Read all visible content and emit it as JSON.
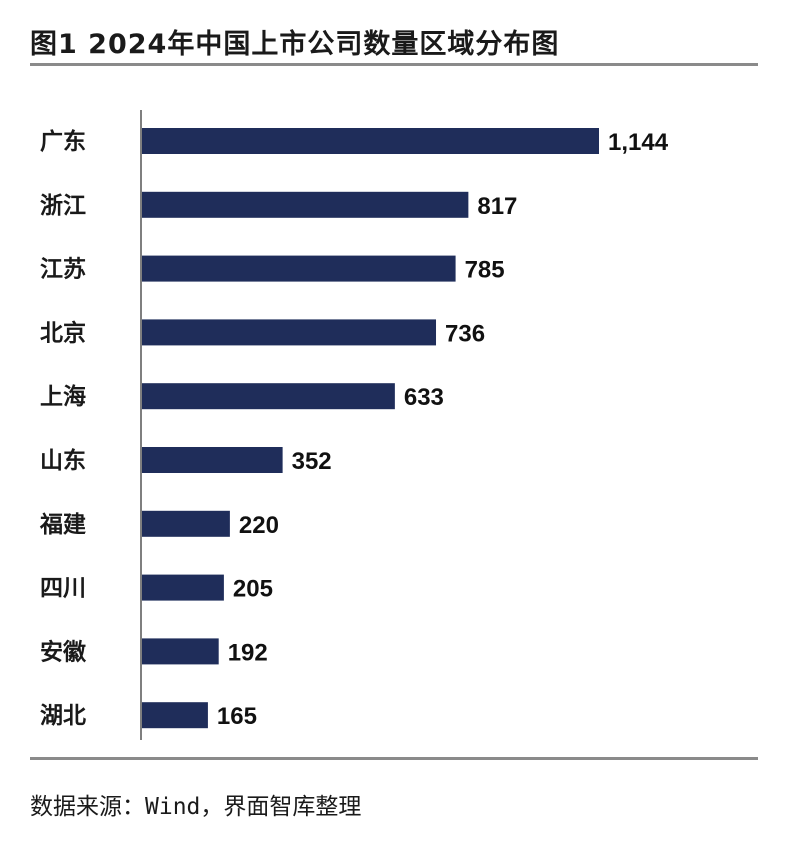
{
  "title": "图1 2024年中国上市公司数量区域分布图",
  "source": "数据来源：Wind，界面智库整理",
  "colors": {
    "bar": "#1f2d5a",
    "rule": "#8a8a8a",
    "axis": "#555555"
  },
  "chart_data": {
    "type": "bar",
    "orientation": "horizontal",
    "title": "图1 2024年中国上市公司数量区域分布图",
    "xlabel": "",
    "ylabel": "",
    "categories": [
      "广东",
      "浙江",
      "江苏",
      "北京",
      "上海",
      "山东",
      "福建",
      "四川",
      "安徽",
      "湖北"
    ],
    "values": [
      1144,
      817,
      785,
      736,
      633,
      352,
      220,
      205,
      192,
      165
    ],
    "value_labels": [
      "1,144",
      "817",
      "785",
      "736",
      "633",
      "352",
      "220",
      "205",
      "192",
      "165"
    ],
    "xlim": [
      0,
      1144
    ],
    "grid": false,
    "legend": "none"
  }
}
